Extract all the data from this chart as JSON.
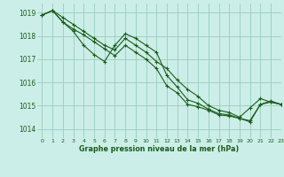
{
  "title": "Graphe pression niveau de la mer (hPa)",
  "background_color": "#cceee8",
  "grid_color": "#99ccbb",
  "line_color": "#1a5c1a",
  "marker_color": "#1a5c1a",
  "xlim": [
    -0.5,
    23
  ],
  "ylim": [
    1013.6,
    1019.4
  ],
  "yticks": [
    1014,
    1015,
    1016,
    1017,
    1018,
    1019
  ],
  "xticks": [
    0,
    1,
    2,
    3,
    4,
    5,
    6,
    7,
    8,
    9,
    10,
    11,
    12,
    13,
    14,
    15,
    16,
    17,
    18,
    19,
    20,
    21,
    22,
    23
  ],
  "series": [
    {
      "x": [
        0,
        1,
        2,
        3,
        4,
        5,
        6,
        7,
        8,
        9,
        10,
        11,
        12,
        13,
        14,
        15,
        16,
        17,
        18,
        19,
        20,
        21,
        22,
        23
      ],
      "y": [
        1018.9,
        1019.1,
        1018.8,
        1018.5,
        1018.2,
        1017.9,
        1017.6,
        1017.4,
        1017.9,
        1017.6,
        1017.3,
        1016.9,
        1016.6,
        1016.1,
        1015.7,
        1015.4,
        1015.0,
        1014.8,
        1014.7,
        1014.5,
        1014.9,
        1015.3,
        1015.15,
        1015.05
      ]
    },
    {
      "x": [
        0,
        1,
        2,
        3,
        4,
        5,
        6,
        7,
        8,
        9,
        10,
        11,
        12,
        13,
        14,
        15,
        16,
        17,
        18,
        19,
        20,
        21,
        22,
        23
      ],
      "y": [
        1018.9,
        1019.1,
        1018.6,
        1018.2,
        1017.6,
        1017.2,
        1016.9,
        1017.6,
        1018.1,
        1017.9,
        1017.6,
        1017.3,
        1016.3,
        1015.8,
        1015.25,
        1015.1,
        1014.85,
        1014.65,
        1014.6,
        1014.45,
        1014.3,
        1015.05,
        1015.15,
        1015.05
      ]
    },
    {
      "x": [
        0,
        1,
        2,
        3,
        4,
        5,
        6,
        7,
        8,
        9,
        10,
        11,
        12,
        13,
        14,
        15,
        16,
        17,
        18,
        19,
        20,
        21,
        22,
        23
      ],
      "y": [
        1018.9,
        1019.1,
        1018.6,
        1018.3,
        1018.05,
        1017.75,
        1017.45,
        1017.15,
        1017.6,
        1017.3,
        1017.0,
        1016.6,
        1015.85,
        1015.55,
        1015.05,
        1014.95,
        1014.8,
        1014.6,
        1014.55,
        1014.45,
        1014.35,
        1015.05,
        1015.2,
        1015.05
      ]
    }
  ]
}
